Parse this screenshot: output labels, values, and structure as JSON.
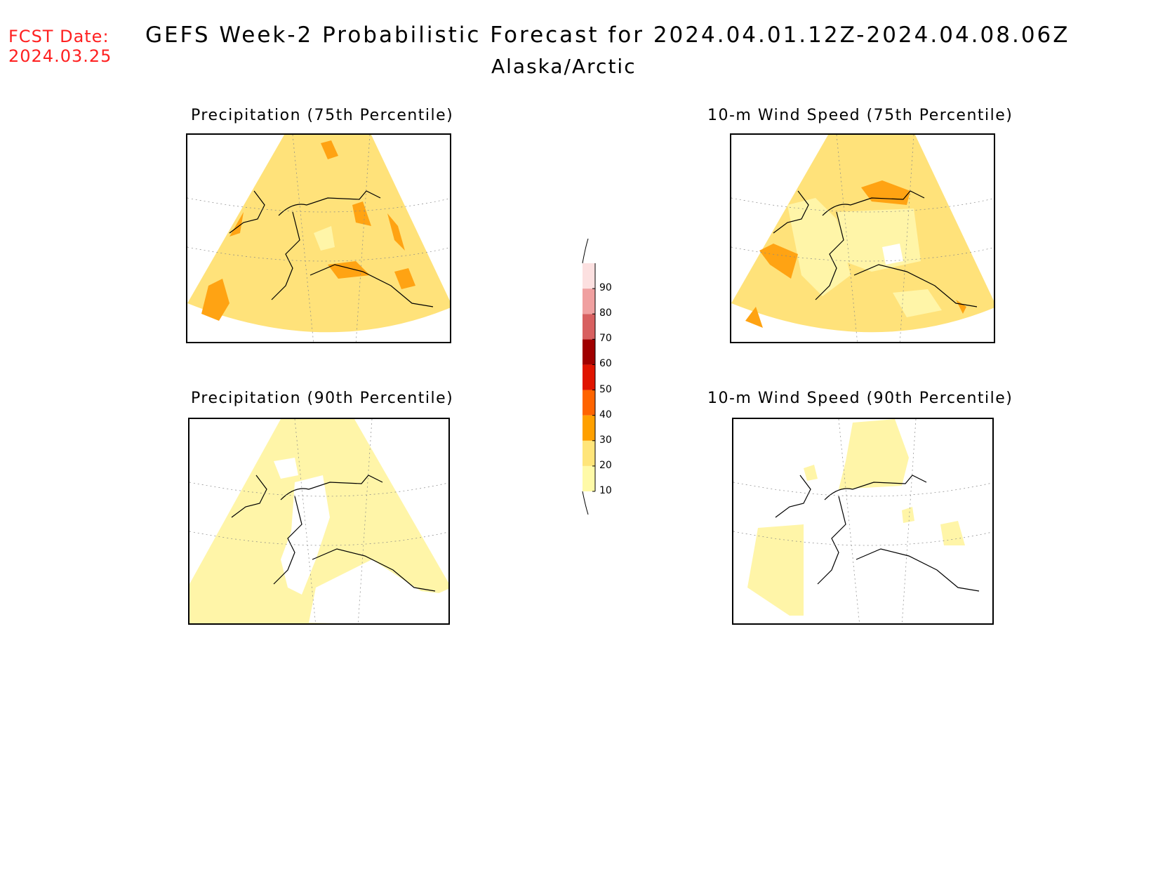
{
  "header": {
    "fcst_label": "FCST Date:",
    "fcst_date": "2024.03.25",
    "title": "GEFS Week-2 Probabilistic Forecast for 2024.04.01.12Z-2024.04.08.06Z",
    "subtitle": "Alaska/Arctic"
  },
  "panels": [
    {
      "id": "precip75",
      "title": "Precipitation (75th Percentile)"
    },
    {
      "id": "wind75",
      "title": "10-m Wind Speed (75th Percentile)"
    },
    {
      "id": "precip90",
      "title": "Precipitation (90th Percentile)"
    },
    {
      "id": "wind90",
      "title": "10-m Wind Speed (90th Percentile)"
    }
  ],
  "colorbar": {
    "levels": [
      "10",
      "20",
      "30",
      "40",
      "50",
      "60",
      "70",
      "80",
      "90"
    ],
    "colors": [
      "#fffaa8",
      "#ffe57a",
      "#ffa000",
      "#ff6400",
      "#e01400",
      "#a00000",
      "#d86060",
      "#f0a0a0",
      "#fce0e0"
    ]
  },
  "map_colors": {
    "light": "#fff5a8",
    "medium": "#ffe27a",
    "orange": "#ffa313",
    "white": "#ffffff"
  }
}
